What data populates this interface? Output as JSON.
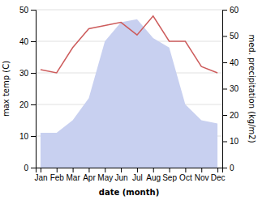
{
  "chart_data": {
    "type": "line",
    "xlabel": "date (month)",
    "ylabel": "max temp (C)",
    "y2label": "med. precipitation (kg/m2)",
    "categories": [
      "Jan",
      "Feb",
      "Mar",
      "Apr",
      "May",
      "Jun",
      "Jul",
      "Aug",
      "Sep",
      "Oct",
      "Nov",
      "Dec"
    ],
    "series": [
      {
        "type": "area",
        "color": "#c8d0f0",
        "values": [
          11,
          11,
          15,
          22,
          40,
          46,
          47,
          41,
          38,
          20,
          15,
          14
        ]
      },
      {
        "type": "line",
        "color": "#cd5c5c",
        "values": [
          31,
          30,
          38,
          44,
          45,
          46,
          42,
          48,
          40,
          40,
          32,
          30
        ]
      }
    ],
    "ylim": [
      0,
      50
    ],
    "yticks": [
      0,
      10,
      20,
      30,
      40,
      50
    ],
    "y2lim": [
      0,
      60
    ],
    "y2ticks": [
      0,
      10,
      20,
      30,
      40,
      50,
      60
    ],
    "grid": true
  }
}
